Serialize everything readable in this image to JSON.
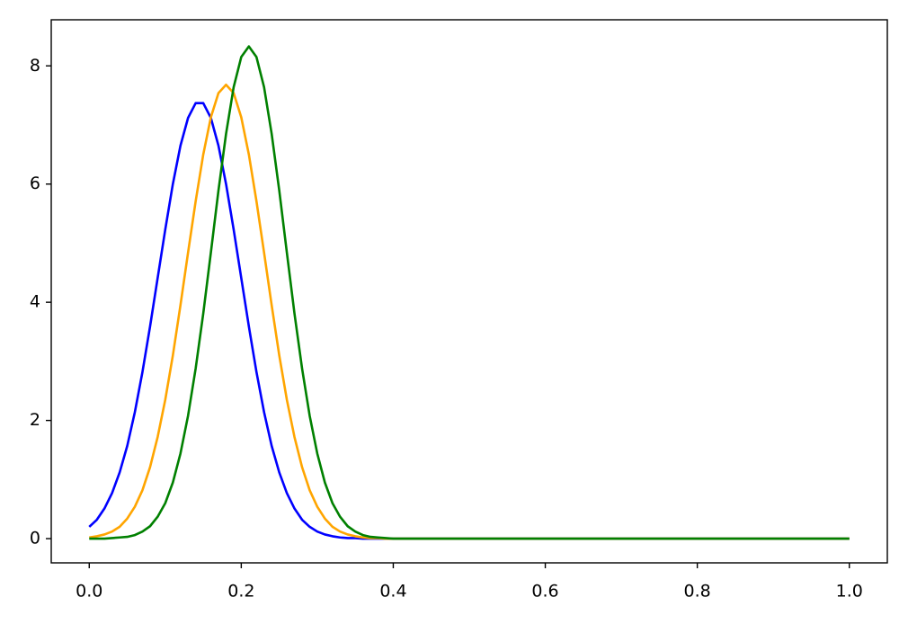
{
  "chart_data": {
    "type": "line",
    "x": [
      0,
      0.01,
      0.02,
      0.03,
      0.04,
      0.05,
      0.06,
      0.07,
      0.08,
      0.09,
      0.1,
      0.11,
      0.12,
      0.13,
      0.14,
      0.15,
      0.16,
      0.17,
      0.18,
      0.19,
      0.2,
      0.21,
      0.22,
      0.23,
      0.24,
      0.25,
      0.26,
      0.27,
      0.28,
      0.29,
      0.3,
      0.31,
      0.32,
      0.33,
      0.34,
      0.35,
      0.36,
      0.37,
      0.38,
      0.39,
      0.4,
      0.41,
      0.42,
      0.43,
      0.44,
      0.45,
      1.0
    ],
    "series": [
      {
        "color": "#0000ff",
        "values": [
          0.2,
          0.32,
          0.51,
          0.77,
          1.12,
          1.57,
          2.14,
          2.82,
          3.59,
          4.41,
          5.23,
          6.0,
          6.65,
          7.12,
          7.37,
          7.37,
          7.12,
          6.65,
          6.0,
          5.23,
          4.41,
          3.59,
          2.82,
          2.14,
          1.57,
          1.12,
          0.77,
          0.51,
          0.32,
          0.2,
          0.12,
          0.07,
          0.04,
          0.02,
          0.01,
          0.01,
          0,
          0,
          0,
          0,
          0,
          0,
          0,
          0,
          0,
          0,
          0
        ]
      },
      {
        "color": "#ffa500",
        "values": [
          0.02,
          0.04,
          0.07,
          0.12,
          0.2,
          0.34,
          0.54,
          0.82,
          1.21,
          1.72,
          2.35,
          3.1,
          3.95,
          4.84,
          5.71,
          6.5,
          7.13,
          7.54,
          7.68,
          7.54,
          7.13,
          6.5,
          5.71,
          4.84,
          3.95,
          3.1,
          2.35,
          1.72,
          1.21,
          0.82,
          0.54,
          0.34,
          0.2,
          0.12,
          0.07,
          0.04,
          0.02,
          0.01,
          0.01,
          0,
          0,
          0,
          0,
          0,
          0,
          0,
          0
        ]
      },
      {
        "color": "#008000",
        "values": [
          0,
          0,
          0,
          0.01,
          0.02,
          0.03,
          0.06,
          0.12,
          0.21,
          0.37,
          0.6,
          0.95,
          1.44,
          2.08,
          2.88,
          3.81,
          4.84,
          5.89,
          6.85,
          7.64,
          8.15,
          8.33,
          8.15,
          7.64,
          6.85,
          5.89,
          4.84,
          3.81,
          2.88,
          2.08,
          1.44,
          0.95,
          0.6,
          0.37,
          0.21,
          0.12,
          0.06,
          0.03,
          0.02,
          0.01,
          0,
          0,
          0,
          0,
          0,
          0,
          0
        ]
      }
    ],
    "xlim": [
      -0.05,
      1.05
    ],
    "ylim": [
      -0.41,
      8.78
    ],
    "xticks": [
      {
        "value": 0,
        "label": "0.0"
      },
      0.2,
      0.4,
      0.6,
      0.8,
      {
        "value": 1,
        "label": "1.0"
      }
    ],
    "yticks": [
      0,
      2,
      4,
      6,
      8
    ],
    "grid": false
  }
}
